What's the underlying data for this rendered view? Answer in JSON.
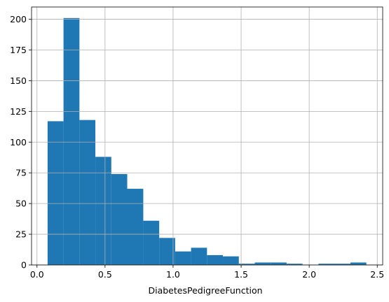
{
  "chart_data": {
    "type": "bar",
    "xlabel": "DiabetesPedigreeFunction",
    "ylabel": "",
    "xlim": [
      -0.04,
      2.54
    ],
    "ylim": [
      0,
      210
    ],
    "grid": true,
    "bar_color": "#1f77b4",
    "grid_color": "#b0b0b0",
    "bins": [
      {
        "start": 0.078,
        "end": 0.195,
        "count": 117
      },
      {
        "start": 0.195,
        "end": 0.312,
        "count": 201
      },
      {
        "start": 0.312,
        "end": 0.429,
        "count": 118
      },
      {
        "start": 0.429,
        "end": 0.546,
        "count": 88
      },
      {
        "start": 0.546,
        "end": 0.663,
        "count": 74
      },
      {
        "start": 0.663,
        "end": 0.781,
        "count": 62
      },
      {
        "start": 0.781,
        "end": 0.898,
        "count": 36
      },
      {
        "start": 0.898,
        "end": 1.015,
        "count": 22
      },
      {
        "start": 1.015,
        "end": 1.132,
        "count": 11
      },
      {
        "start": 1.132,
        "end": 1.249,
        "count": 14
      },
      {
        "start": 1.249,
        "end": 1.366,
        "count": 8
      },
      {
        "start": 1.366,
        "end": 1.483,
        "count": 7
      },
      {
        "start": 1.483,
        "end": 1.6,
        "count": 1
      },
      {
        "start": 1.6,
        "end": 1.717,
        "count": 2
      },
      {
        "start": 1.717,
        "end": 1.834,
        "count": 2
      },
      {
        "start": 1.834,
        "end": 1.951,
        "count": 1
      },
      {
        "start": 1.951,
        "end": 2.068,
        "count": 0
      },
      {
        "start": 2.068,
        "end": 2.185,
        "count": 1
      },
      {
        "start": 2.185,
        "end": 2.303,
        "count": 1
      },
      {
        "start": 2.303,
        "end": 2.42,
        "count": 2
      }
    ],
    "x_ticks": [
      0.0,
      0.5,
      1.0,
      1.5,
      2.0,
      2.5
    ],
    "x_tick_labels": [
      "0.0",
      "0.5",
      "1.0",
      "1.5",
      "2.0",
      "2.5"
    ],
    "y_ticks": [
      0,
      25,
      50,
      75,
      100,
      125,
      150,
      175,
      200
    ],
    "y_tick_labels": [
      "0",
      "25",
      "50",
      "75",
      "100",
      "125",
      "150",
      "175",
      "200"
    ]
  }
}
